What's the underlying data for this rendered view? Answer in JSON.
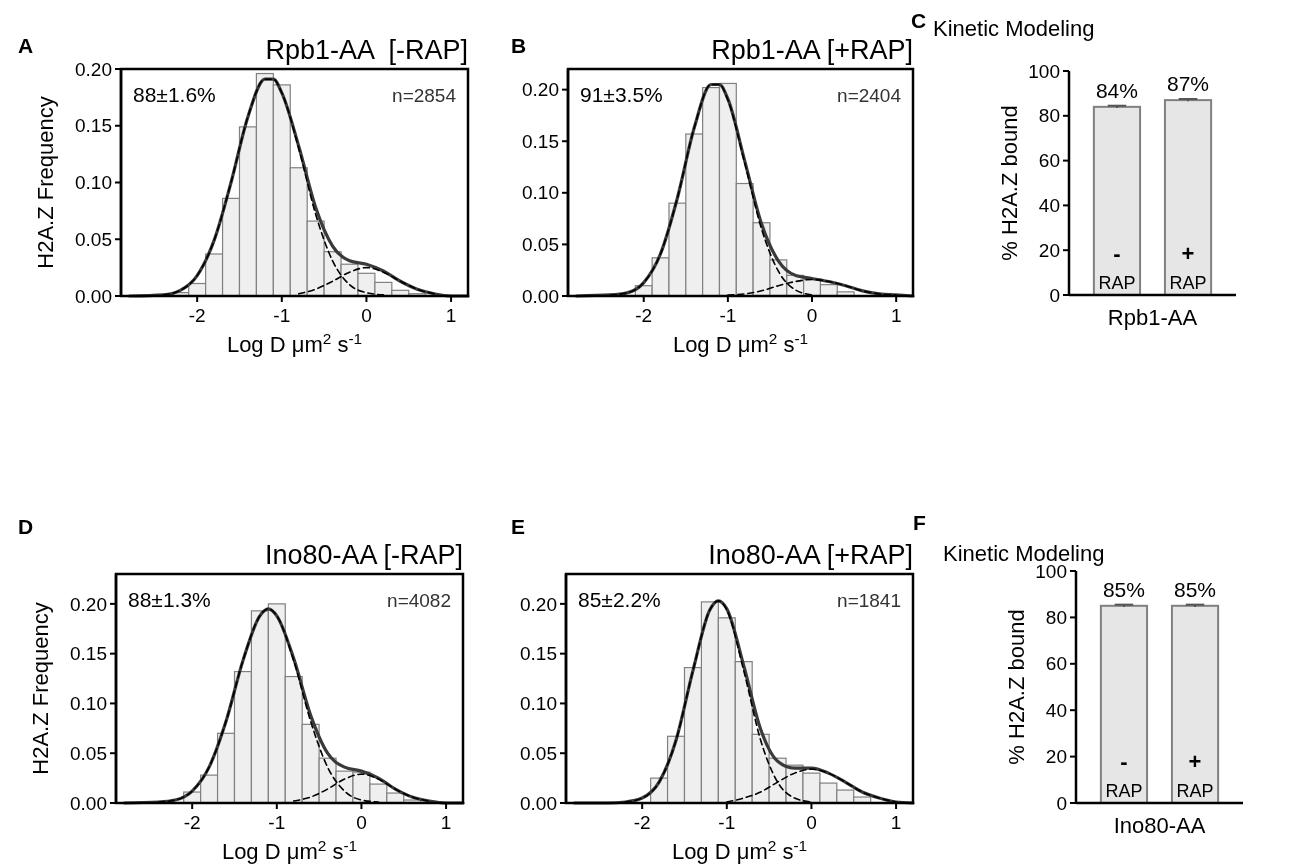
{
  "chart_data": [
    {
      "type": "histogram",
      "title": "Rpb1-AA  [-RAP]",
      "xlabel": "Log D μm$^{2}$ s$^{-1}$",
      "ylabel": "H2A.Z Frequency",
      "annotations": [
        "A",
        "88±1.6%",
        "n=2854"
      ],
      "color": "#efefef",
      "bins": [
        -2.3,
        -2.1,
        -1.9,
        -1.7,
        -1.5,
        -1.3,
        -1.1,
        -0.9,
        -0.7,
        -0.5,
        -0.3,
        -0.1,
        0.1,
        0.3,
        0.5,
        0.7
      ],
      "values": [
        0.003,
        0.011,
        0.037,
        0.086,
        0.149,
        0.196,
        0.186,
        0.113,
        0.066,
        0.039,
        0.028,
        0.02,
        0.012,
        0.005,
        0.002
      ],
      "series": [
        {
          "type": "line",
          "color": "#3a3a3a",
          "line_style": "solid",
          "x": [
            -2.8,
            -2.4,
            -2.2,
            -2.0,
            -1.8,
            -1.6,
            -1.4,
            -1.2,
            -1.1,
            -1.0,
            -0.8,
            -0.6,
            -0.4,
            -0.2,
            0,
            0.2,
            0.4,
            0.6,
            0.8,
            1.0,
            1.2
          ],
          "values": [
            0,
            0.001,
            0.005,
            0.018,
            0.049,
            0.1,
            0.158,
            0.191,
            0.191,
            0.179,
            0.132,
            0.078,
            0.044,
            0.031,
            0.028,
            0.022,
            0.013,
            0.006,
            0.002,
            0,
            0
          ]
        },
        {
          "type": "line",
          "color": "#000000",
          "line_style": "dashed",
          "x": [
            -2.4,
            -2.2,
            -2.0,
            -1.8,
            -1.6,
            -1.4,
            -1.2,
            -1.1,
            -1.0,
            -0.8,
            -0.6,
            -0.4,
            -0.2,
            0,
            0.2
          ],
          "values": [
            0.001,
            0.005,
            0.018,
            0.049,
            0.1,
            0.158,
            0.191,
            0.191,
            0.179,
            0.13,
            0.072,
            0.031,
            0.01,
            0.003,
            0.001
          ]
        },
        {
          "type": "line",
          "color": "#000000",
          "line_style": "dashed",
          "x": [
            -0.8,
            -0.6,
            -0.4,
            -0.2,
            0,
            0.2,
            0.4,
            0.6,
            0.8
          ],
          "values": [
            0.002,
            0.006,
            0.013,
            0.021,
            0.025,
            0.021,
            0.013,
            0.006,
            0.002
          ]
        }
      ],
      "xlim": [
        -2.9,
        1.2
      ],
      "xticks": [
        -2,
        -1,
        0,
        1
      ],
      "ylim": [
        0,
        0.2
      ],
      "yticks": [
        {
          "value": 0,
          "label": "0.00"
        },
        {
          "value": 0.05,
          "label": "0.05"
        },
        {
          "value": 0.1,
          "label": "0.10"
        },
        {
          "value": 0.15,
          "label": "0.15"
        },
        {
          "value": 0.2,
          "label": "0.20"
        }
      ]
    },
    {
      "type": "histogram",
      "title": "Rpb1-AA [+RAP]",
      "xlabel": "Log D μm$^{2}$ s$^{-1}$",
      "annotations": [
        "B",
        "91±3.5%",
        "n=2404"
      ],
      "color": "#efefef",
      "bins": [
        -2.1,
        -1.9,
        -1.7,
        -1.5,
        -1.3,
        -1.1,
        -0.9,
        -0.7,
        -0.5,
        -0.3,
        -0.1,
        0.1,
        0.3,
        0.5
      ],
      "values": [
        0.01,
        0.037,
        0.09,
        0.157,
        0.202,
        0.206,
        0.109,
        0.071,
        0.035,
        0.02,
        0.016,
        0.011,
        0.004
      ],
      "series": [
        {
          "type": "line",
          "color": "#3a3a3a",
          "line_style": "solid",
          "x": [
            -2.8,
            -2.4,
            -2.2,
            -2.0,
            -1.8,
            -1.6,
            -1.4,
            -1.2,
            -1.1,
            -1.0,
            -0.8,
            -0.6,
            -0.4,
            -0.2,
            0,
            0.2,
            0.4,
            0.6,
            0.8,
            1.0,
            1.2
          ],
          "values": [
            0,
            0.001,
            0.003,
            0.013,
            0.041,
            0.095,
            0.163,
            0.205,
            0.205,
            0.191,
            0.131,
            0.07,
            0.034,
            0.02,
            0.017,
            0.014,
            0.01,
            0.005,
            0.002,
            0.001,
            0
          ]
        },
        {
          "type": "line",
          "color": "#000000",
          "line_style": "dashed",
          "x": [
            -2.4,
            -2.2,
            -2.0,
            -1.8,
            -1.6,
            -1.4,
            -1.2,
            -1.1,
            -1.0,
            -0.8,
            -0.6,
            -0.4,
            -0.2,
            0
          ],
          "values": [
            0.001,
            0.003,
            0.013,
            0.041,
            0.095,
            0.163,
            0.205,
            0.205,
            0.19,
            0.129,
            0.065,
            0.024,
            0.006,
            0.001
          ]
        },
        {
          "type": "line",
          "color": "#000000",
          "line_style": "dashed",
          "x": [
            -1.0,
            -0.8,
            -0.6,
            -0.4,
            -0.2,
            0,
            0.2,
            0.4,
            0.6,
            0.8,
            1.0
          ],
          "values": [
            0.001,
            0.002,
            0.005,
            0.01,
            0.014,
            0.016,
            0.014,
            0.01,
            0.005,
            0.002,
            0.001
          ]
        }
      ],
      "xlim": [
        -2.9,
        1.2
      ],
      "xticks": [
        -2,
        -1,
        0,
        1
      ],
      "ylim": [
        0,
        0.22
      ],
      "yticks": [
        {
          "value": 0,
          "label": "0.00"
        },
        {
          "value": 0.05,
          "label": "0.05"
        },
        {
          "value": 0.1,
          "label": "0.10"
        },
        {
          "value": 0.15,
          "label": "0.15"
        },
        {
          "value": 0.2,
          "label": "0.20"
        }
      ]
    },
    {
      "type": "bar",
      "title": "Kinetic Modeling",
      "xlabel": "Rpb1-AA",
      "ylabel": "% H2A.Z bound",
      "annotations": [
        "C"
      ],
      "categories": [
        "- RAP",
        "+ RAP"
      ],
      "values": [
        84,
        87
      ],
      "errors": [
        0.5,
        0.5
      ],
      "value_labels": [
        "84%",
        "87%"
      ],
      "color": "#e6e6e6",
      "ylim": [
        0,
        100
      ],
      "yticks": [
        0,
        20,
        40,
        60,
        80,
        100
      ]
    },
    {
      "type": "histogram",
      "title": "Ino80-AA [-RAP]",
      "xlabel": "Log D μm$^{2}$ s$^{-1}$",
      "ylabel": "H2A.Z Frequency",
      "annotations": [
        "D",
        "88±1.3%",
        "n=4082"
      ],
      "color": "#efefef",
      "bins": [
        -2.1,
        -1.9,
        -1.7,
        -1.5,
        -1.3,
        -1.1,
        -0.9,
        -0.7,
        -0.5,
        -0.3,
        -0.1,
        0.1,
        0.3,
        0.5,
        0.7
      ],
      "values": [
        0.011,
        0.028,
        0.07,
        0.132,
        0.193,
        0.2,
        0.127,
        0.079,
        0.045,
        0.032,
        0.031,
        0.019,
        0.01,
        0.003
      ],
      "series": [
        {
          "type": "line",
          "color": "#3a3a3a",
          "line_style": "solid",
          "x": [
            -2.8,
            -2.4,
            -2.2,
            -2.0,
            -1.8,
            -1.6,
            -1.4,
            -1.2,
            -1.1,
            -1.0,
            -0.8,
            -0.6,
            -0.4,
            -0.2,
            0,
            0.2,
            0.4,
            0.6,
            0.8,
            1.0,
            1.2
          ],
          "values": [
            0,
            0.001,
            0.003,
            0.012,
            0.036,
            0.082,
            0.143,
            0.188,
            0.195,
            0.188,
            0.145,
            0.088,
            0.05,
            0.036,
            0.032,
            0.025,
            0.014,
            0.006,
            0.002,
            0,
            0
          ]
        },
        {
          "type": "line",
          "color": "#000000",
          "line_style": "dashed",
          "x": [
            -2.4,
            -2.2,
            -2.0,
            -1.8,
            -1.6,
            -1.4,
            -1.2,
            -1.1,
            -1.0,
            -0.8,
            -0.6,
            -0.4,
            -0.2,
            0,
            0.2
          ],
          "values": [
            0.001,
            0.003,
            0.012,
            0.036,
            0.082,
            0.143,
            0.188,
            0.195,
            0.188,
            0.143,
            0.082,
            0.036,
            0.012,
            0.003,
            0.001
          ]
        },
        {
          "type": "line",
          "color": "#000000",
          "line_style": "dashed",
          "x": [
            -0.8,
            -0.6,
            -0.4,
            -0.2,
            0,
            0.2,
            0.4,
            0.6,
            0.8
          ],
          "values": [
            0.002,
            0.006,
            0.014,
            0.024,
            0.029,
            0.024,
            0.014,
            0.006,
            0.002
          ]
        }
      ],
      "xlim": [
        -2.9,
        1.2
      ],
      "xticks": [
        -2,
        -1,
        0,
        1
      ],
      "ylim": [
        0,
        0.23
      ],
      "yticks": [
        {
          "value": 0,
          "label": "0.00"
        },
        {
          "value": 0.05,
          "label": "0.05"
        },
        {
          "value": 0.1,
          "label": "0.10"
        },
        {
          "value": 0.15,
          "label": "0.15"
        },
        {
          "value": 0.2,
          "label": "0.20"
        }
      ]
    },
    {
      "type": "histogram",
      "title": "Ino80-AA [+RAP]",
      "xlabel": "Log D μm$^{2}$ s$^{-1}$",
      "annotations": [
        "E",
        "85±2.2%",
        "n=1841"
      ],
      "color": "#efefef",
      "bins": [
        -1.9,
        -1.7,
        -1.5,
        -1.3,
        -1.1,
        -0.9,
        -0.7,
        -0.5,
        -0.3,
        -0.1,
        0.1,
        0.3,
        0.5,
        0.7
      ],
      "values": [
        0.025,
        0.067,
        0.136,
        0.202,
        0.186,
        0.142,
        0.069,
        0.045,
        0.038,
        0.03,
        0.02,
        0.013,
        0.006
      ],
      "series": [
        {
          "type": "line",
          "color": "#3a3a3a",
          "line_style": "solid",
          "x": [
            -2.8,
            -2.4,
            -2.2,
            -2.0,
            -1.8,
            -1.6,
            -1.4,
            -1.2,
            -1.1,
            -1.0,
            -0.8,
            -0.6,
            -0.4,
            -0.2,
            0,
            0.2,
            0.4,
            0.6,
            0.8,
            1.0,
            1.2
          ],
          "values": [
            0,
            0,
            0.001,
            0.005,
            0.021,
            0.063,
            0.133,
            0.194,
            0.203,
            0.195,
            0.138,
            0.074,
            0.042,
            0.035,
            0.035,
            0.03,
            0.021,
            0.011,
            0.005,
            0.001,
            0
          ]
        },
        {
          "type": "line",
          "color": "#000000",
          "line_style": "dashed",
          "x": [
            -2.2,
            -2.0,
            -1.8,
            -1.6,
            -1.4,
            -1.2,
            -1.1,
            -1.0,
            -0.8,
            -0.6,
            -0.4,
            -0.2,
            0
          ],
          "values": [
            0.001,
            0.005,
            0.021,
            0.063,
            0.133,
            0.194,
            0.203,
            0.194,
            0.133,
            0.063,
            0.021,
            0.005,
            0.001
          ]
        },
        {
          "type": "line",
          "color": "#000000",
          "line_style": "dashed",
          "x": [
            -1.0,
            -0.8,
            -0.6,
            -0.4,
            -0.2,
            0,
            0.2,
            0.4,
            0.6,
            0.8,
            1.0
          ],
          "values": [
            0.001,
            0.005,
            0.011,
            0.021,
            0.03,
            0.034,
            0.03,
            0.021,
            0.011,
            0.005,
            0.001
          ]
        }
      ],
      "xlim": [
        -2.9,
        1.2
      ],
      "xticks": [
        -2,
        -1,
        0,
        1
      ],
      "ylim": [
        0,
        0.23
      ],
      "yticks": [
        {
          "value": 0,
          "label": "0.00"
        },
        {
          "value": 0.05,
          "label": "0.05"
        },
        {
          "value": 0.1,
          "label": "0.10"
        },
        {
          "value": 0.15,
          "label": "0.15"
        },
        {
          "value": 0.2,
          "label": "0.20"
        }
      ]
    },
    {
      "type": "bar",
      "title": "Kinetic Modeling",
      "xlabel": "Ino80-AA",
      "ylabel": "% H2A.Z bound",
      "annotations": [
        "F"
      ],
      "categories": [
        "- RAP",
        "+ RAP"
      ],
      "values": [
        85,
        85
      ],
      "errors": [
        0.5,
        0.5
      ],
      "value_labels": [
        "85%",
        "85%"
      ],
      "color": "#e6e6e6",
      "ylim": [
        0,
        100
      ],
      "yticks": [
        0,
        20,
        40,
        60,
        80,
        100
      ]
    }
  ]
}
